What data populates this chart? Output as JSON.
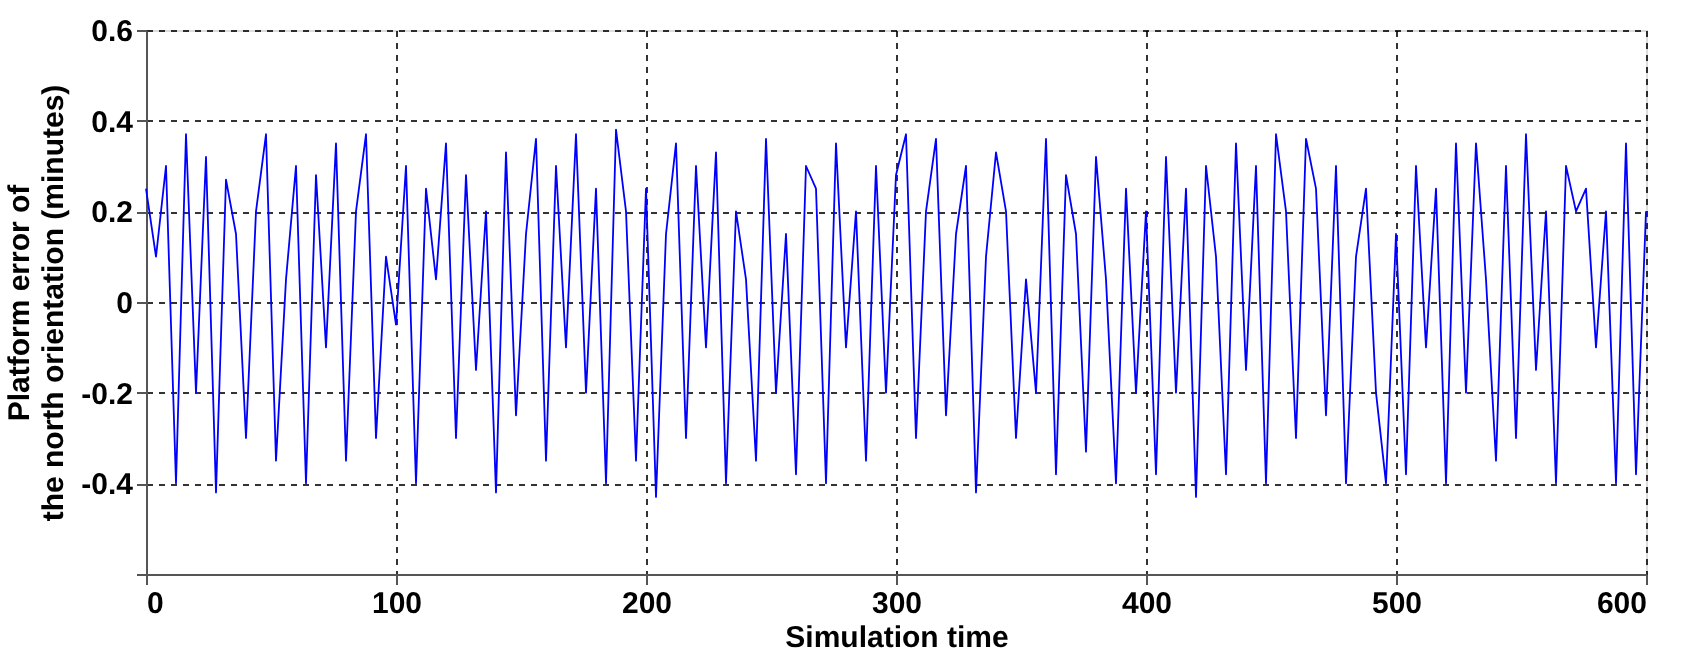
{
  "chart_data": {
    "type": "line",
    "xlabel": "Simulation time",
    "ylabel": "Platform error of\nthe north orientation (minutes)",
    "x": [
      0,
      4,
      8,
      12,
      16,
      20,
      24,
      28,
      32,
      36,
      40,
      44,
      48,
      52,
      56,
      60,
      64,
      68,
      72,
      76,
      80,
      84,
      88,
      92,
      96,
      100,
      104,
      108,
      112,
      116,
      120,
      124,
      128,
      132,
      136,
      140,
      144,
      148,
      152,
      156,
      160,
      164,
      168,
      172,
      176,
      180,
      184,
      188,
      192,
      196,
      200,
      204,
      208,
      212,
      216,
      220,
      224,
      228,
      232,
      236,
      240,
      244,
      248,
      252,
      256,
      260,
      264,
      268,
      272,
      276,
      280,
      284,
      288,
      292,
      296,
      300,
      304,
      308,
      312,
      316,
      320,
      324,
      328,
      332,
      336,
      340,
      344,
      348,
      352,
      356,
      360,
      364,
      368,
      372,
      376,
      380,
      384,
      388,
      392,
      396,
      400,
      404,
      408,
      412,
      416,
      420,
      424,
      428,
      432,
      436,
      440,
      444,
      448,
      452,
      456,
      460,
      464,
      468,
      472,
      476,
      480,
      484,
      488,
      492,
      496,
      500,
      504,
      508,
      512,
      516,
      520,
      524,
      528,
      532,
      536,
      540,
      544,
      548,
      552,
      556,
      560,
      564,
      568,
      572,
      576,
      580,
      584,
      588,
      592,
      596,
      600
    ],
    "series": [
      {
        "color": "#0000ff",
        "values": [
          0.25,
          0.1,
          0.3,
          -0.4,
          0.37,
          -0.2,
          0.32,
          -0.42,
          0.27,
          0.15,
          -0.3,
          0.2,
          0.37,
          -0.35,
          0.05,
          0.3,
          -0.4,
          0.28,
          -0.1,
          0.35,
          -0.35,
          0.2,
          0.37,
          -0.3,
          0.1,
          -0.05,
          0.3,
          -0.4,
          0.25,
          0.05,
          0.35,
          -0.3,
          0.28,
          -0.15,
          0.2,
          -0.42,
          0.33,
          -0.25,
          0.15,
          0.36,
          -0.35,
          0.3,
          -0.1,
          0.37,
          -0.2,
          0.25,
          -0.4,
          0.38,
          0.2,
          -0.35,
          0.25,
          -0.43,
          0.15,
          0.35,
          -0.3,
          0.3,
          -0.1,
          0.33,
          -0.4,
          0.2,
          0.05,
          -0.35,
          0.36,
          -0.2,
          0.15,
          -0.38,
          0.3,
          0.25,
          -0.4,
          0.35,
          -0.1,
          0.2,
          -0.35,
          0.3,
          -0.2,
          0.28,
          0.37,
          -0.3,
          0.2,
          0.36,
          -0.25,
          0.15,
          0.3,
          -0.42,
          0.1,
          0.33,
          0.2,
          -0.3,
          0.05,
          -0.2,
          0.36,
          -0.38,
          0.28,
          0.15,
          -0.33,
          0.32,
          0.05,
          -0.4,
          0.25,
          -0.2,
          0.2,
          -0.38,
          0.32,
          -0.2,
          0.25,
          -0.43,
          0.3,
          0.1,
          -0.38,
          0.35,
          -0.15,
          0.3,
          -0.4,
          0.37,
          0.2,
          -0.3,
          0.36,
          0.25,
          -0.25,
          0.3,
          -0.4,
          0.1,
          0.25,
          -0.2,
          -0.4,
          0.15,
          -0.38,
          0.3,
          -0.1,
          0.25,
          -0.4,
          0.35,
          -0.2,
          0.35,
          0.05,
          -0.35,
          0.3,
          -0.3,
          0.37,
          -0.15,
          0.2,
          -0.4,
          0.3,
          0.2,
          0.25,
          -0.1,
          0.2,
          -0.4,
          0.35,
          -0.38,
          0.2
        ]
      }
    ],
    "xlim": [
      0,
      600
    ],
    "xticks": [
      0,
      100,
      200,
      300,
      400,
      500,
      600
    ],
    "ylim": [
      -0.6,
      0.6
    ],
    "yticks": [
      {
        "value": -0.6,
        "label": null
      },
      -0.4,
      -0.2,
      0,
      0.2,
      0.4,
      0.6
    ],
    "grid": true,
    "line_style": "solid",
    "marker": "none",
    "legend": false
  }
}
